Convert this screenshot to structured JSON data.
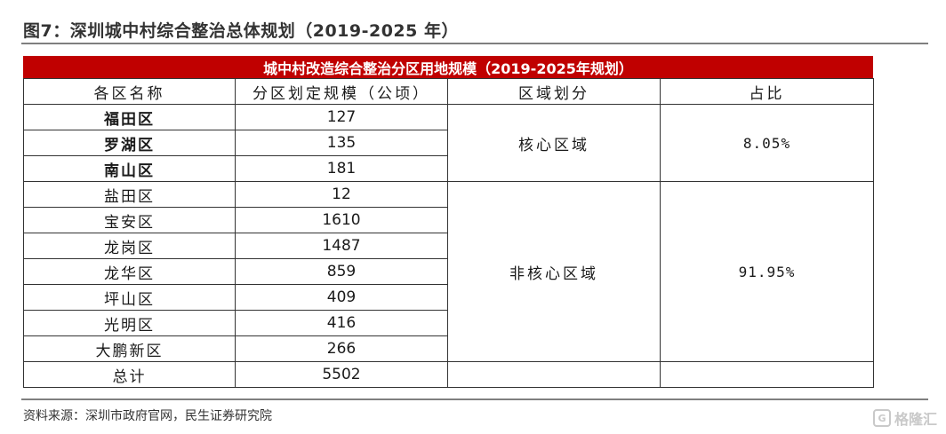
{
  "figure": {
    "title": "图7：深圳城中村综合整治总体规划（2019-2025 年）",
    "source": "资料来源：深圳市政府官网，民生证券研究院"
  },
  "table": {
    "banner": "城中村改造综合整治分区用地规模（2019-2025年规划）",
    "headers": [
      "各区名称",
      "分区划定规模（公顷）",
      "区域划分",
      "占比"
    ],
    "rows": [
      {
        "district": "福田区",
        "area": "127"
      },
      {
        "district": "罗湖区",
        "area": "135"
      },
      {
        "district": "南山区",
        "area": "181"
      },
      {
        "district": "盐田区",
        "area": "12"
      },
      {
        "district": "宝安区",
        "area": "1610"
      },
      {
        "district": "龙岗区",
        "area": "1487"
      },
      {
        "district": "龙华区",
        "area": "859"
      },
      {
        "district": "坪山区",
        "area": "409"
      },
      {
        "district": "光明区",
        "area": "416"
      },
      {
        "district": "大鹏新区",
        "area": "266"
      }
    ],
    "groups": [
      {
        "region": "核心区域",
        "share": "8.05%"
      },
      {
        "region": "非核心区域",
        "share": "91.95%"
      }
    ],
    "total": {
      "label": "总计",
      "value": "5502"
    }
  },
  "watermark": {
    "text": "格隆汇",
    "icon": "G"
  }
}
